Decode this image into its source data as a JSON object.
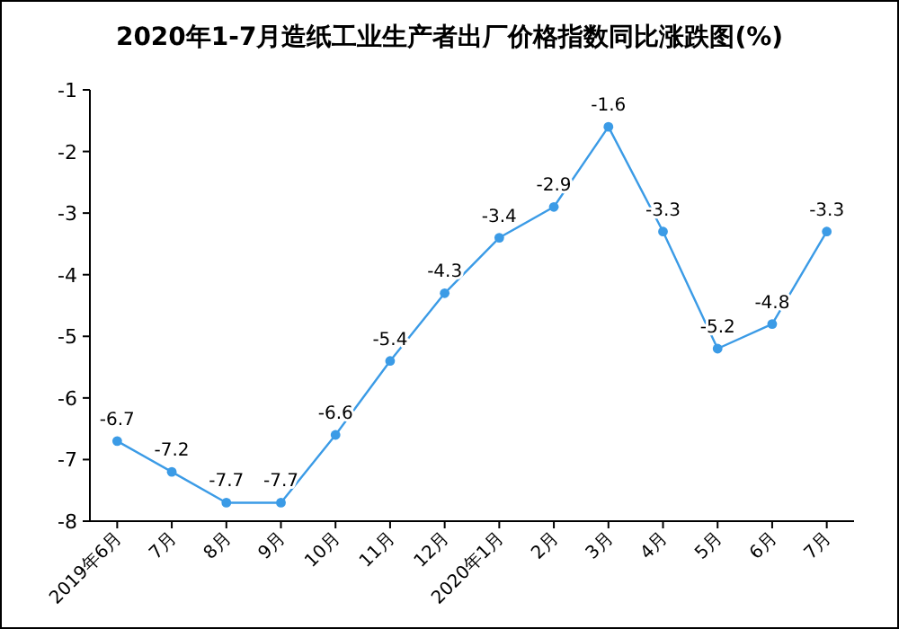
{
  "chart_data": {
    "type": "line",
    "title": "2020年1-7月造纸工业生产者出厂价格指数同比涨跌图(%)",
    "categories": [
      "2019年6月",
      "7月",
      "8月",
      "9月",
      "10月",
      "11月",
      "12月",
      "2020年1月",
      "2月",
      "3月",
      "4月",
      "5月",
      "6月",
      "7月"
    ],
    "series": [
      {
        "color": "#3b9be6",
        "values": [
          -6.7,
          -7.2,
          -7.7,
          -7.7,
          -6.6,
          -5.4,
          -4.3,
          -3.4,
          -2.9,
          -1.6,
          -3.3,
          -5.2,
          -4.8,
          -3.3
        ]
      }
    ],
    "ylim": [
      -8,
      -1
    ],
    "yticks": [
      -8,
      -7,
      -6,
      -5,
      -4,
      -3,
      -2,
      -1
    ],
    "grid": false,
    "marker": "circle",
    "line_style": "solid",
    "data_labels": true
  }
}
